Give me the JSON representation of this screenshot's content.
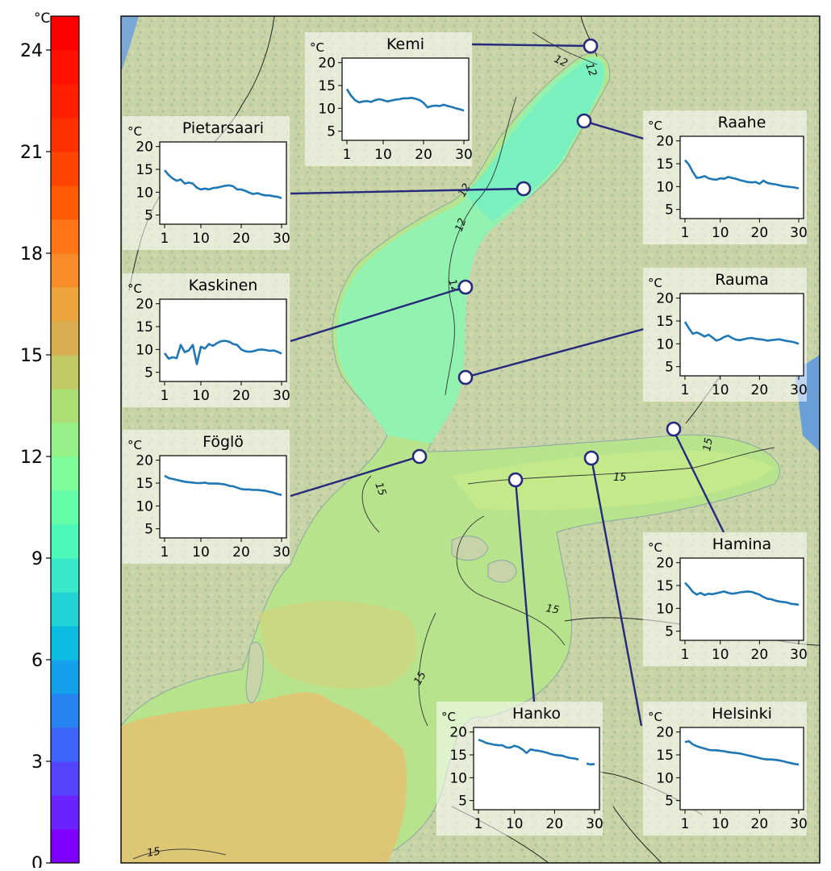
{
  "colorbar": {
    "unit": "°C",
    "range": [
      0,
      25
    ],
    "step": 1,
    "tick_labels": [
      "0",
      "3",
      "6",
      "9",
      "12",
      "15",
      "18",
      "21",
      "24"
    ],
    "colors": [
      "#8000ff",
      "#6a23fe",
      "#5444fd",
      "#3e64f9",
      "#2884f2",
      "#12a1ea",
      "#0cbbe0",
      "#22d3d5",
      "#38e8c8",
      "#4ef8ba",
      "#64feab",
      "#7efb9a",
      "#96f188",
      "#acde76",
      "#c2c863",
      "#d8ae50",
      "#eca43c",
      "#f88c2a",
      "#fe7416",
      "#ff5a04",
      "#ff4500",
      "#ff3000",
      "#ff2000",
      "#ff1000",
      "#ff0000"
    ]
  },
  "map": {
    "contour_labels": [
      "12",
      "12",
      "12",
      "12",
      "12",
      "15",
      "15",
      "15",
      "15",
      "15",
      "15"
    ]
  },
  "stations": [
    {
      "name": "Kemi",
      "y_unit": "°C",
      "yticks": [
        "5",
        "10",
        "15",
        "20"
      ],
      "xticks": [
        "1",
        "10",
        "20",
        "30"
      ]
    },
    {
      "name": "Raahe",
      "y_unit": "°C",
      "yticks": [
        "5",
        "10",
        "15",
        "20"
      ],
      "xticks": [
        "1",
        "10",
        "20",
        "30"
      ]
    },
    {
      "name": "Pietarsaari",
      "y_unit": "°C",
      "yticks": [
        "5",
        "10",
        "15",
        "20"
      ],
      "xticks": [
        "1",
        "10",
        "20",
        "30"
      ]
    },
    {
      "name": "Kaskinen",
      "y_unit": "°C",
      "yticks": [
        "5",
        "10",
        "15",
        "20"
      ],
      "xticks": [
        "1",
        "10",
        "20",
        "30"
      ]
    },
    {
      "name": "Rauma",
      "y_unit": "°C",
      "yticks": [
        "5",
        "10",
        "15",
        "20"
      ],
      "xticks": [
        "1",
        "10",
        "20",
        "30"
      ]
    },
    {
      "name": "Föglö",
      "y_unit": "°C",
      "yticks": [
        "5",
        "10",
        "15",
        "20"
      ],
      "xticks": [
        "1",
        "10",
        "20",
        "30"
      ]
    },
    {
      "name": "Hamina",
      "y_unit": "°C",
      "yticks": [
        "5",
        "10",
        "15",
        "20"
      ],
      "xticks": [
        "1",
        "10",
        "20",
        "30"
      ]
    },
    {
      "name": "Hanko",
      "y_unit": "°C",
      "yticks": [
        "5",
        "10",
        "15",
        "20"
      ],
      "xticks": [
        "1",
        "10",
        "20",
        "30"
      ]
    },
    {
      "name": "Helsinki",
      "y_unit": "°C",
      "yticks": [
        "5",
        "10",
        "15",
        "20"
      ],
      "xticks": [
        "1",
        "10",
        "20",
        "30"
      ]
    }
  ],
  "chart_data": [
    {
      "type": "line",
      "title": "Kemi",
      "ylabel": "°C",
      "xlim": [
        1,
        30
      ],
      "ylim": [
        3,
        21
      ],
      "x": [
        1,
        2,
        3,
        4,
        5,
        6,
        7,
        8,
        9,
        10,
        11,
        12,
        13,
        14,
        15,
        16,
        17,
        18,
        19,
        20,
        21,
        22,
        23,
        24,
        25,
        26,
        27,
        28,
        29,
        30
      ],
      "series": [
        {
          "values": [
            14.2,
            12.8,
            11.8,
            11.3,
            11.5,
            11.6,
            11.4,
            11.8,
            12.0,
            11.8,
            11.5,
            11.7,
            11.9,
            12.0,
            12.2,
            12.2,
            12.3,
            12.1,
            11.8,
            11.2,
            10.2,
            10.5,
            10.6,
            10.5,
            10.8,
            10.5,
            10.3,
            10.0,
            9.8,
            9.5
          ]
        }
      ]
    },
    {
      "type": "line",
      "title": "Raahe",
      "ylabel": "°C",
      "xlim": [
        1,
        30
      ],
      "ylim": [
        3,
        21
      ],
      "x": [
        1,
        2,
        3,
        4,
        5,
        6,
        7,
        8,
        9,
        10,
        11,
        12,
        13,
        14,
        15,
        16,
        17,
        18,
        19,
        20,
        21,
        22,
        23,
        24,
        25,
        26,
        27,
        28,
        29,
        30
      ],
      "series": [
        {
          "values": [
            15.8,
            14.8,
            13.2,
            11.9,
            12.0,
            12.3,
            11.8,
            11.6,
            11.5,
            11.8,
            11.7,
            12.1,
            11.9,
            11.7,
            11.4,
            11.2,
            11.0,
            10.9,
            11.0,
            10.6,
            11.3,
            10.8,
            10.6,
            10.5,
            10.3,
            10.1,
            10.0,
            9.9,
            9.8,
            9.6
          ]
        }
      ]
    },
    {
      "type": "line",
      "title": "Pietarsaari",
      "ylabel": "°C",
      "xlim": [
        1,
        30
      ],
      "ylim": [
        3,
        21
      ],
      "x": [
        1,
        2,
        3,
        4,
        5,
        6,
        7,
        8,
        9,
        10,
        11,
        12,
        13,
        14,
        15,
        16,
        17,
        18,
        19,
        20,
        21,
        22,
        23,
        24,
        25,
        26,
        27,
        28,
        29,
        30
      ],
      "series": [
        {
          "values": [
            14.8,
            13.8,
            13.0,
            12.5,
            12.8,
            11.9,
            12.1,
            11.9,
            11.0,
            10.6,
            10.8,
            10.6,
            10.9,
            11.0,
            11.2,
            11.4,
            11.5,
            11.3,
            10.6,
            10.6,
            10.3,
            9.9,
            9.6,
            9.8,
            9.5,
            9.3,
            9.3,
            9.1,
            9.0,
            8.7
          ]
        }
      ]
    },
    {
      "type": "line",
      "title": "Kaskinen",
      "ylabel": "°C",
      "xlim": [
        1,
        30
      ],
      "ylim": [
        3,
        21
      ],
      "x": [
        1,
        2,
        3,
        4,
        5,
        6,
        7,
        8,
        9,
        10,
        11,
        12,
        13,
        14,
        15,
        16,
        17,
        18,
        19,
        20,
        21,
        22,
        23,
        24,
        25,
        26,
        27,
        28,
        29,
        30
      ],
      "series": [
        {
          "values": [
            9.2,
            8.0,
            8.3,
            8.1,
            11.0,
            9.4,
            9.8,
            11.0,
            6.8,
            10.6,
            10.2,
            11.2,
            10.8,
            11.4,
            11.8,
            11.9,
            11.7,
            11.2,
            11.0,
            10.0,
            9.6,
            9.5,
            9.6,
            9.9,
            10.0,
            9.9,
            9.7,
            9.8,
            9.5,
            9.1
          ]
        }
      ]
    },
    {
      "type": "line",
      "title": "Rauma",
      "ylabel": "°C",
      "xlim": [
        1,
        30
      ],
      "ylim": [
        3,
        21
      ],
      "x": [
        1,
        2,
        3,
        4,
        5,
        6,
        7,
        8,
        9,
        10,
        11,
        12,
        13,
        14,
        15,
        16,
        17,
        18,
        19,
        20,
        21,
        22,
        23,
        24,
        25,
        26,
        27,
        28,
        29,
        30
      ],
      "series": [
        {
          "values": [
            14.8,
            13.4,
            12.2,
            12.5,
            12.1,
            11.6,
            12.0,
            11.4,
            10.7,
            11.0,
            11.5,
            11.8,
            11.3,
            10.9,
            10.8,
            11.0,
            11.2,
            11.3,
            11.1,
            11.0,
            10.9,
            10.7,
            10.8,
            10.9,
            11.0,
            10.8,
            10.6,
            10.5,
            10.3,
            10.0
          ]
        }
      ]
    },
    {
      "type": "line",
      "title": "Föglö",
      "ylabel": "°C",
      "xlim": [
        1,
        30
      ],
      "ylim": [
        3,
        21
      ],
      "x": [
        1,
        2,
        3,
        4,
        5,
        6,
        7,
        8,
        9,
        10,
        11,
        12,
        13,
        14,
        15,
        16,
        17,
        18,
        19,
        20,
        21,
        22,
        23,
        24,
        25,
        26,
        27,
        28,
        29,
        30
      ],
      "series": [
        {
          "values": [
            16.6,
            16.1,
            15.9,
            15.7,
            15.5,
            15.3,
            15.2,
            15.1,
            15.0,
            15.0,
            15.1,
            14.9,
            14.9,
            14.9,
            14.8,
            14.7,
            14.4,
            14.3,
            14.0,
            13.7,
            13.6,
            13.6,
            13.5,
            13.5,
            13.4,
            13.3,
            13.1,
            12.9,
            12.6,
            12.4
          ]
        }
      ]
    },
    {
      "type": "line",
      "title": "Hamina",
      "ylabel": "°C",
      "xlim": [
        1,
        30
      ],
      "ylim": [
        3,
        21
      ],
      "x": [
        1,
        2,
        3,
        4,
        5,
        6,
        7,
        8,
        9,
        10,
        11,
        12,
        13,
        14,
        15,
        16,
        17,
        18,
        19,
        20,
        21,
        22,
        23,
        24,
        25,
        26,
        27,
        28,
        29,
        30
      ],
      "series": [
        {
          "values": [
            15.6,
            14.7,
            13.6,
            13.0,
            13.4,
            12.9,
            13.2,
            13.1,
            13.3,
            13.5,
            13.7,
            13.4,
            13.2,
            13.3,
            13.5,
            13.6,
            13.7,
            13.6,
            13.3,
            13.0,
            12.5,
            12.1,
            12.0,
            11.7,
            11.5,
            11.4,
            11.3,
            11.0,
            10.9,
            10.8
          ]
        }
      ]
    },
    {
      "type": "line",
      "title": "Hanko",
      "ylabel": "°C",
      "xlim": [
        1,
        30
      ],
      "ylim": [
        3,
        21
      ],
      "x": [
        1,
        2,
        3,
        4,
        5,
        6,
        7,
        8,
        9,
        10,
        11,
        12,
        13,
        14,
        15,
        16,
        17,
        18,
        19,
        20,
        21,
        22,
        23,
        24,
        25,
        26,
        27,
        28,
        29,
        30
      ],
      "series": [
        {
          "values": [
            18.3,
            18.0,
            17.6,
            17.4,
            17.2,
            17.1,
            17.1,
            16.6,
            16.6,
            17.0,
            16.7,
            16.2,
            15.4,
            16.2,
            16.0,
            15.9,
            15.7,
            15.5,
            15.2,
            15.0,
            14.9,
            14.8,
            14.5,
            14.3,
            14.2,
            14.0,
            null,
            13.1,
            12.9,
            13.0
          ]
        }
      ]
    },
    {
      "type": "line",
      "title": "Helsinki",
      "ylabel": "°C",
      "xlim": [
        1,
        30
      ],
      "ylim": [
        3,
        21
      ],
      "x": [
        1,
        2,
        3,
        4,
        5,
        6,
        7,
        8,
        9,
        10,
        11,
        12,
        13,
        14,
        15,
        16,
        17,
        18,
        19,
        20,
        21,
        22,
        23,
        24,
        25,
        26,
        27,
        28,
        29,
        30
      ],
      "series": [
        {
          "values": [
            17.8,
            18.0,
            17.3,
            16.9,
            16.6,
            16.4,
            16.1,
            16.0,
            16.0,
            15.9,
            15.8,
            15.6,
            15.5,
            15.4,
            15.3,
            15.1,
            14.9,
            14.7,
            14.5,
            14.3,
            14.1,
            14.0,
            14.0,
            13.9,
            13.8,
            13.6,
            13.4,
            13.2,
            13.0,
            12.9
          ]
        }
      ]
    }
  ]
}
